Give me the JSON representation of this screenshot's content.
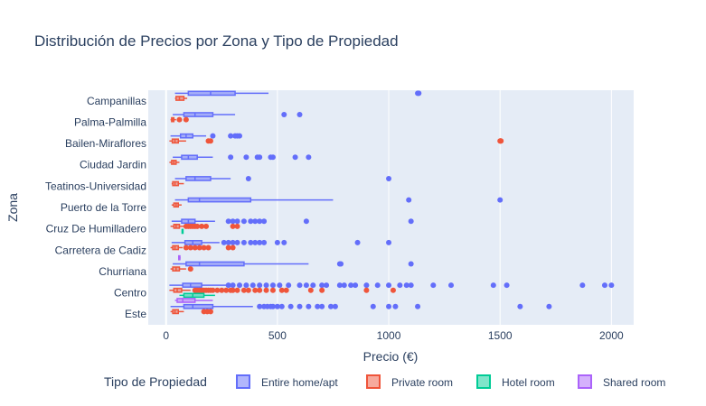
{
  "chart_data": {
    "type": "box",
    "title": "Distribución de Precios por Zona y Tipo de Propiedad",
    "xlabel": "Precio (€)",
    "ylabel": "Zona",
    "xlim": [
      -80,
      2100
    ],
    "xticks": [
      0,
      500,
      1000,
      1500,
      2000
    ],
    "grid": true,
    "legend_position": "bottom",
    "legend_title": "Tipo de Propiedad",
    "categories": [
      "Este",
      "Centro",
      "Churriana",
      "Carretera de Cadiz",
      "Cruz De Humilladero",
      "Puerto de la Torre",
      "Teatinos-Universidad",
      "Ciudad Jardin",
      "Bailen-Miraflores",
      "Palma-Palmilla",
      "Campanillas"
    ],
    "series": [
      {
        "name": "Entire home/apt",
        "color": "#636efa",
        "boxes": [
          {
            "zone": "Este",
            "min": 20,
            "q1": 80,
            "median": 120,
            "q3": 210,
            "max": 390,
            "outliers": [
              420,
              440,
              455,
              470,
              480,
              500,
              520,
              560,
              600,
              640,
              680,
              700,
              740,
              760,
              930,
              1000,
              1030,
              1130,
              1590,
              1720
            ]
          },
          {
            "zone": "Centro",
            "min": 15,
            "q1": 75,
            "median": 110,
            "q3": 160,
            "max": 270,
            "outliers": [
              280,
              300,
              330,
              360,
              390,
              420,
              450,
              480,
              510,
              550,
              600,
              630,
              660,
              700,
              720,
              780,
              800,
              830,
              850,
              900,
              950,
              1000,
              1050,
              1080,
              1100,
              1200,
              1280,
              1470,
              1530,
              1870,
              1970,
              2000
            ]
          },
          {
            "zone": "Churriana",
            "min": 30,
            "q1": 90,
            "median": 150,
            "q3": 350,
            "max": 640,
            "outliers": [
              780,
              785,
              1100
            ]
          },
          {
            "zone": "Carretera de Cadiz",
            "min": 25,
            "q1": 85,
            "median": 120,
            "q3": 160,
            "max": 240,
            "outliers": [
              260,
              280,
              300,
              320,
              350,
              380,
              400,
              420,
              440,
              500,
              530,
              860,
              1000
            ]
          },
          {
            "zone": "Cruz De Humilladero",
            "min": 25,
            "q1": 70,
            "median": 100,
            "q3": 130,
            "max": 220,
            "outliers": [
              280,
              300,
              320,
              350,
              380,
              400,
              420,
              440,
              630,
              1100
            ]
          },
          {
            "zone": "Puerto de la Torre",
            "min": 40,
            "q1": 100,
            "median": 150,
            "q3": 380,
            "max": 750,
            "outliers": [
              1090,
              1500
            ]
          },
          {
            "zone": "Teatinos-Universidad",
            "min": 40,
            "q1": 90,
            "median": 130,
            "q3": 200,
            "max": 290,
            "outliers": [
              370,
              1000
            ]
          },
          {
            "zone": "Ciudad Jardin",
            "min": 30,
            "q1": 70,
            "median": 100,
            "q3": 140,
            "max": 210,
            "outliers": [
              290,
              360,
              410,
              420,
              470,
              480,
              580,
              640
            ]
          },
          {
            "zone": "Bailen-Miraflores",
            "min": 20,
            "q1": 65,
            "median": 90,
            "q3": 120,
            "max": 180,
            "outliers": [
              210,
              290,
              310,
              320,
              330
            ]
          },
          {
            "zone": "Palma-Palmilla",
            "min": 30,
            "q1": 80,
            "median": 130,
            "q3": 210,
            "max": 310,
            "outliers": [
              530,
              600
            ]
          },
          {
            "zone": "Campanillas",
            "min": 40,
            "q1": 100,
            "median": 200,
            "q3": 310,
            "max": 460,
            "outliers": [
              1130,
              1135
            ]
          }
        ]
      },
      {
        "name": "Private room",
        "color": "#ef553b",
        "boxes": [
          {
            "zone": "Este",
            "min": 20,
            "q1": 30,
            "median": 40,
            "q3": 55,
            "max": 80,
            "outliers": [
              170,
              185,
              200
            ]
          },
          {
            "zone": "Centro",
            "min": 15,
            "q1": 35,
            "median": 50,
            "q3": 70,
            "max": 110,
            "outliers": [
              130,
              140,
              150,
              160,
              170,
              180,
              190,
              200,
              210,
              230,
              250,
              270,
              290,
              300,
              320,
              350,
              370,
              400,
              420,
              450,
              480,
              520,
              540,
              650,
              700,
              900,
              1020
            ]
          },
          {
            "zone": "Churriana",
            "min": 20,
            "q1": 30,
            "median": 45,
            "q3": 60,
            "max": 90,
            "outliers": [
              110
            ]
          },
          {
            "zone": "Carretera de Cadiz",
            "min": 20,
            "q1": 30,
            "median": 40,
            "q3": 55,
            "max": 75,
            "outliers": [
              90,
              110,
              130,
              150,
              170,
              190,
              280,
              300
            ]
          },
          {
            "zone": "Cruz De Humilladero",
            "min": 20,
            "q1": 35,
            "median": 45,
            "q3": 60,
            "max": 80,
            "outliers": [
              90,
              100,
              110,
              120,
              130,
              140,
              160,
              180,
              300,
              320
            ]
          },
          {
            "zone": "Puerto de la Torre",
            "min": 25,
            "q1": 35,
            "median": 45,
            "q3": 55,
            "max": 70,
            "outliers": []
          },
          {
            "zone": "Teatinos-Universidad",
            "min": 25,
            "q1": 30,
            "median": 40,
            "q3": 55,
            "max": 80,
            "outliers": []
          },
          {
            "zone": "Ciudad Jardin",
            "min": 15,
            "q1": 25,
            "median": 35,
            "q3": 45,
            "max": 60,
            "outliers": []
          },
          {
            "zone": "Bailen-Miraflores",
            "min": 15,
            "q1": 28,
            "median": 40,
            "q3": 55,
            "max": 90,
            "outliers": [
              190,
              200,
              1500,
              1502,
              1504
            ]
          },
          {
            "zone": "Palma-Palmilla",
            "min": 20,
            "q1": 25,
            "median": 30,
            "q3": 35,
            "max": 45,
            "outliers": [
              60,
              90
            ]
          },
          {
            "zone": "Campanillas",
            "min": 40,
            "q1": 45,
            "median": 60,
            "q3": 80,
            "max": 95,
            "outliers": []
          }
        ]
      },
      {
        "name": "Hotel room",
        "color": "#00cc96",
        "boxes": [
          {
            "zone": "Centro",
            "min": 60,
            "q1": 80,
            "median": 120,
            "q3": 170,
            "max": 220,
            "outliers": []
          },
          {
            "zone": "Cruz De Humilladero",
            "min": 70,
            "q1": 72,
            "median": 74,
            "q3": 76,
            "max": 78,
            "outliers": []
          }
        ]
      },
      {
        "name": "Shared room",
        "color": "#ab63fa",
        "boxes": [
          {
            "zone": "Centro",
            "min": 40,
            "q1": 50,
            "median": 75,
            "q3": 130,
            "max": 210,
            "outliers": []
          },
          {
            "zone": "Carretera de Cadiz",
            "min": 55,
            "q1": 57,
            "median": 60,
            "q3": 62,
            "max": 65,
            "outliers": []
          }
        ]
      }
    ]
  }
}
